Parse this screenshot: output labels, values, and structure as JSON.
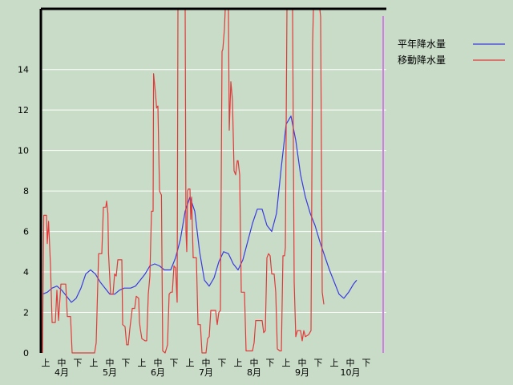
{
  "chart_data": {
    "type": "line",
    "title": "",
    "xlabel": "",
    "ylabel": "",
    "ylim": [
      0,
      17
    ],
    "y_ticks": [
      "0",
      "2",
      "4",
      "6",
      "8",
      "10",
      "12",
      "14"
    ],
    "x_range": [
      0,
      21
    ],
    "x_subticks": [
      "上",
      "中",
      "下",
      "上",
      "中",
      "下",
      "上",
      "中",
      "下",
      "上",
      "中",
      "下",
      "上",
      "中",
      "下",
      "上",
      "中",
      "下",
      "上",
      "中",
      "下"
    ],
    "x_months": [
      "4月",
      "5月",
      "6月",
      "7月",
      "8月",
      "9月",
      "10月"
    ],
    "grid": true,
    "legend_position": "top-right",
    "series": [
      {
        "name": "平年降水量",
        "color": "#3a3ae0",
        "points": [
          [
            0.0,
            2.9
          ],
          [
            0.3,
            3.0
          ],
          [
            0.6,
            3.2
          ],
          [
            0.9,
            3.3
          ],
          [
            1.2,
            3.1
          ],
          [
            1.5,
            2.8
          ],
          [
            1.8,
            2.5
          ],
          [
            2.1,
            2.7
          ],
          [
            2.4,
            3.2
          ],
          [
            2.7,
            3.9
          ],
          [
            3.0,
            4.1
          ],
          [
            3.3,
            3.9
          ],
          [
            3.6,
            3.5
          ],
          [
            3.9,
            3.2
          ],
          [
            4.2,
            2.9
          ],
          [
            4.5,
            2.9
          ],
          [
            4.8,
            3.1
          ],
          [
            5.1,
            3.2
          ],
          [
            5.5,
            3.2
          ],
          [
            5.8,
            3.3
          ],
          [
            6.1,
            3.6
          ],
          [
            6.4,
            3.9
          ],
          [
            6.7,
            4.3
          ],
          [
            7.0,
            4.4
          ],
          [
            7.3,
            4.3
          ],
          [
            7.6,
            4.1
          ],
          [
            8.0,
            4.1
          ],
          [
            8.3,
            4.7
          ],
          [
            8.6,
            5.6
          ],
          [
            8.9,
            7.0
          ],
          [
            9.2,
            7.7
          ],
          [
            9.5,
            7.0
          ],
          [
            9.8,
            5.0
          ],
          [
            10.1,
            3.6
          ],
          [
            10.4,
            3.3
          ],
          [
            10.7,
            3.7
          ],
          [
            11.0,
            4.5
          ],
          [
            11.3,
            5.0
          ],
          [
            11.6,
            4.9
          ],
          [
            11.9,
            4.4
          ],
          [
            12.2,
            4.1
          ],
          [
            12.5,
            4.6
          ],
          [
            12.8,
            5.5
          ],
          [
            13.1,
            6.4
          ],
          [
            13.4,
            7.1
          ],
          [
            13.7,
            7.1
          ],
          [
            14.0,
            6.3
          ],
          [
            14.3,
            6.0
          ],
          [
            14.6,
            6.9
          ],
          [
            14.9,
            9.2
          ],
          [
            15.2,
            11.3
          ],
          [
            15.5,
            11.7
          ],
          [
            15.8,
            10.5
          ],
          [
            16.1,
            8.8
          ],
          [
            16.4,
            7.7
          ],
          [
            16.7,
            6.9
          ],
          [
            17.0,
            6.3
          ],
          [
            17.3,
            5.5
          ],
          [
            17.6,
            4.8
          ],
          [
            17.9,
            4.1
          ],
          [
            18.2,
            3.5
          ],
          [
            18.5,
            2.9
          ],
          [
            18.8,
            2.7
          ],
          [
            19.1,
            3.0
          ],
          [
            19.4,
            3.4
          ],
          [
            19.6,
            3.6
          ]
        ]
      },
      {
        "name": "移動降水量",
        "color": "#e23a3a",
        "points": [
          [
            0.0,
            0.0
          ],
          [
            0.08,
            6.8
          ],
          [
            0.25,
            6.8
          ],
          [
            0.3,
            5.4
          ],
          [
            0.38,
            6.5
          ],
          [
            0.5,
            4.3
          ],
          [
            0.6,
            1.5
          ],
          [
            0.8,
            1.5
          ],
          [
            0.9,
            3.1
          ],
          [
            1.0,
            1.6
          ],
          [
            1.15,
            3.4
          ],
          [
            1.45,
            3.4
          ],
          [
            1.55,
            1.8
          ],
          [
            1.75,
            1.8
          ],
          [
            1.85,
            0.0
          ],
          [
            2.3,
            0.0
          ],
          [
            2.8,
            0.0
          ],
          [
            3.0,
            0.0
          ],
          [
            3.25,
            0.0
          ],
          [
            3.35,
            0.5
          ],
          [
            3.5,
            4.9
          ],
          [
            3.7,
            4.9
          ],
          [
            3.8,
            7.2
          ],
          [
            3.95,
            7.2
          ],
          [
            4.0,
            7.5
          ],
          [
            4.08,
            6.9
          ],
          [
            4.12,
            4.9
          ],
          [
            4.25,
            2.9
          ],
          [
            4.4,
            2.9
          ],
          [
            4.5,
            3.9
          ],
          [
            4.6,
            3.8
          ],
          [
            4.7,
            4.6
          ],
          [
            4.95,
            4.6
          ],
          [
            5.0,
            1.4
          ],
          [
            5.15,
            1.3
          ],
          [
            5.25,
            0.4
          ],
          [
            5.35,
            0.4
          ],
          [
            5.45,
            1.2
          ],
          [
            5.6,
            2.2
          ],
          [
            5.75,
            2.2
          ],
          [
            5.85,
            2.8
          ],
          [
            6.0,
            2.7
          ],
          [
            6.05,
            1.5
          ],
          [
            6.1,
            1.2
          ],
          [
            6.2,
            0.7
          ],
          [
            6.4,
            0.6
          ],
          [
            6.5,
            0.6
          ],
          [
            6.6,
            2.9
          ],
          [
            6.7,
            3.8
          ],
          [
            6.8,
            7.0
          ],
          [
            6.9,
            7.0
          ],
          [
            6.93,
            13.8
          ],
          [
            7.05,
            12.8
          ],
          [
            7.12,
            12.1
          ],
          [
            7.2,
            12.2
          ],
          [
            7.3,
            8.0
          ],
          [
            7.42,
            7.8
          ],
          [
            7.5,
            0.1
          ],
          [
            7.65,
            0.0
          ],
          [
            7.8,
            0.4
          ],
          [
            7.9,
            2.9
          ],
          [
            8.0,
            3.0
          ],
          [
            8.1,
            3.0
          ],
          [
            8.2,
            4.3
          ],
          [
            8.3,
            4.2
          ],
          [
            8.4,
            2.5
          ],
          [
            8.45,
            17.2
          ],
          [
            8.55,
            17.2
          ],
          [
            8.65,
            17.2
          ],
          [
            8.9,
            17.2
          ],
          [
            8.95,
            6.0
          ],
          [
            9.0,
            5.0
          ],
          [
            9.05,
            8.0
          ],
          [
            9.1,
            8.1
          ],
          [
            9.2,
            8.1
          ],
          [
            9.25,
            6.6
          ],
          [
            9.3,
            7.7
          ],
          [
            9.4,
            4.7
          ],
          [
            9.6,
            4.7
          ],
          [
            9.7,
            1.4
          ],
          [
            9.85,
            1.4
          ],
          [
            9.95,
            0.0
          ],
          [
            10.2,
            0.0
          ],
          [
            10.3,
            0.7
          ],
          [
            10.4,
            0.8
          ],
          [
            10.5,
            2.1
          ],
          [
            10.8,
            2.1
          ],
          [
            10.9,
            1.4
          ],
          [
            11.0,
            2.0
          ],
          [
            11.1,
            2.1
          ],
          [
            11.2,
            14.9
          ],
          [
            11.25,
            15.0
          ],
          [
            11.35,
            16.0
          ],
          [
            11.4,
            17.2
          ],
          [
            11.6,
            17.2
          ],
          [
            11.65,
            11.0
          ],
          [
            11.75,
            13.4
          ],
          [
            11.85,
            12.5
          ],
          [
            11.95,
            9.0
          ],
          [
            12.05,
            8.8
          ],
          [
            12.15,
            9.5
          ],
          [
            12.2,
            9.5
          ],
          [
            12.3,
            8.8
          ],
          [
            12.4,
            3.0
          ],
          [
            12.6,
            3.0
          ],
          [
            12.7,
            0.1
          ],
          [
            13.1,
            0.1
          ],
          [
            13.2,
            0.5
          ],
          [
            13.3,
            1.6
          ],
          [
            13.5,
            1.6
          ],
          [
            13.7,
            1.6
          ],
          [
            13.8,
            1.0
          ],
          [
            13.9,
            1.1
          ],
          [
            14.0,
            4.7
          ],
          [
            14.1,
            4.9
          ],
          [
            14.2,
            4.8
          ],
          [
            14.3,
            3.9
          ],
          [
            14.45,
            3.9
          ],
          [
            14.55,
            3.0
          ],
          [
            14.65,
            0.2
          ],
          [
            14.8,
            0.1
          ],
          [
            14.9,
            0.1
          ],
          [
            15.0,
            4.8
          ],
          [
            15.1,
            4.8
          ],
          [
            15.15,
            5.2
          ],
          [
            15.25,
            17.2
          ],
          [
            15.4,
            17.2
          ],
          [
            15.45,
            17.0
          ],
          [
            15.5,
            17.2
          ],
          [
            15.6,
            17.2
          ],
          [
            15.7,
            3.5
          ],
          [
            15.8,
            0.8
          ],
          [
            15.9,
            1.1
          ],
          [
            16.0,
            1.1
          ],
          [
            16.1,
            1.1
          ],
          [
            16.2,
            0.6
          ],
          [
            16.3,
            1.1
          ],
          [
            16.4,
            0.8
          ],
          [
            16.6,
            0.9
          ],
          [
            16.75,
            1.1
          ],
          [
            16.85,
            15.3
          ],
          [
            16.9,
            17.2
          ],
          [
            17.0,
            17.2
          ],
          [
            17.05,
            17.0
          ],
          [
            17.1,
            17.2
          ],
          [
            17.3,
            17.2
          ],
          [
            17.35,
            16.6
          ],
          [
            17.45,
            3.0
          ],
          [
            17.55,
            2.4
          ]
        ]
      }
    ]
  }
}
